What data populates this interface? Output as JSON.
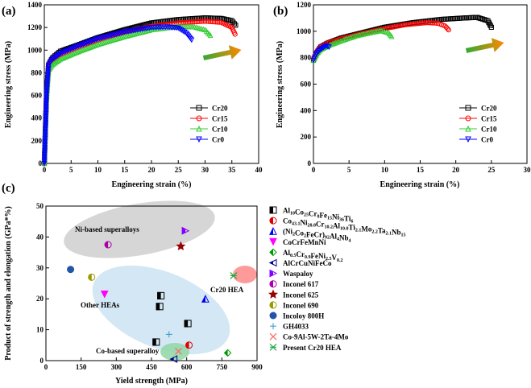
{
  "panels": {
    "a": {
      "label": "(a)",
      "xlabel": "Engineering strain (%)",
      "ylabel": "Engineering stress (MPa)"
    },
    "b": {
      "label": "(b)",
      "xlabel": "Engineering strain (%)",
      "ylabel": "Engineering stress (MPa)"
    },
    "c": {
      "label": "(c)",
      "xlabel": "Yield strength (MPa)",
      "ylabel": "Product of strength and elongation (GPa*%)"
    }
  },
  "chart_data": [
    {
      "id": "a",
      "type": "line",
      "xlabel": "Engineering strain (%)",
      "ylabel": "Engineering stress (MPa)",
      "xlim": [
        0,
        40
      ],
      "ylim": [
        0,
        1400
      ],
      "xticks": [
        0,
        5,
        10,
        15,
        20,
        25,
        30,
        35,
        40
      ],
      "yticks": [
        0,
        200,
        400,
        600,
        800,
        1000,
        1200,
        1400
      ],
      "legend_position": "bottom-right",
      "series": [
        {
          "name": "Cr20",
          "color": "#000000",
          "marker": "square",
          "x": [
            0,
            0.4,
            0.8,
            1.5,
            3,
            6,
            10,
            15,
            20,
            25,
            30,
            33,
            35,
            35.7
          ],
          "y": [
            0,
            600,
            870,
            930,
            990,
            1040,
            1110,
            1180,
            1240,
            1270,
            1285,
            1280,
            1260,
            1220
          ]
        },
        {
          "name": "Cr15",
          "color": "#ff0000",
          "marker": "circle",
          "x": [
            0,
            0.4,
            0.8,
            1.5,
            3,
            6,
            10,
            15,
            20,
            25,
            30,
            33,
            35,
            35.6
          ],
          "y": [
            0,
            580,
            850,
            910,
            960,
            1020,
            1090,
            1160,
            1210,
            1240,
            1255,
            1245,
            1200,
            1140
          ]
        },
        {
          "name": "Cr10",
          "color": "#33cc33",
          "marker": "triangle-up",
          "x": [
            0,
            0.4,
            0.8,
            1.5,
            3,
            6,
            10,
            15,
            20,
            25,
            28,
            30,
            31
          ],
          "y": [
            0,
            560,
            820,
            870,
            920,
            980,
            1050,
            1120,
            1180,
            1210,
            1205,
            1180,
            1130
          ]
        },
        {
          "name": "Cr0",
          "color": "#0000ff",
          "marker": "triangle-down",
          "x": [
            0,
            0.4,
            0.8,
            1.5,
            3,
            6,
            10,
            15,
            20,
            23,
            25,
            26.5,
            27.5
          ],
          "y": [
            0,
            600,
            870,
            920,
            970,
            1030,
            1100,
            1160,
            1200,
            1205,
            1195,
            1150,
            1090
          ]
        }
      ]
    },
    {
      "id": "b",
      "type": "line",
      "xlabel": "Engineering strain (%)",
      "ylabel": "Engineering stress (MPa)",
      "xlim": [
        0,
        30
      ],
      "ylim": [
        0,
        1200
      ],
      "xticks": [
        0,
        5,
        10,
        15,
        20,
        25,
        30
      ],
      "yticks": [
        0,
        200,
        400,
        600,
        800,
        1000,
        1200
      ],
      "legend_position": "bottom-right",
      "series": [
        {
          "name": "Cr20",
          "color": "#000000",
          "marker": "square",
          "x": [
            0,
            0.5,
            1,
            2,
            4,
            7,
            10,
            14,
            18,
            21,
            23,
            24.5,
            25
          ],
          "y": [
            780,
            840,
            880,
            910,
            950,
            990,
            1030,
            1065,
            1090,
            1100,
            1105,
            1080,
            1030
          ]
        },
        {
          "name": "Cr15",
          "color": "#ff0000",
          "marker": "circle",
          "x": [
            0,
            0.5,
            1,
            2,
            4,
            7,
            10,
            13,
            16,
            17.5,
            18.5,
            19
          ],
          "y": [
            790,
            850,
            880,
            910,
            945,
            985,
            1020,
            1050,
            1065,
            1060,
            1040,
            1010
          ]
        },
        {
          "name": "Cr10",
          "color": "#33cc33",
          "marker": "triangle-up",
          "x": [
            0,
            0.5,
            1,
            2,
            4,
            6,
            8,
            9.5,
            10.5,
            11
          ],
          "y": [
            780,
            830,
            860,
            890,
            930,
            965,
            990,
            1005,
            990,
            960
          ]
        },
        {
          "name": "Cr0",
          "color": "#0000ff",
          "marker": "triangle-down",
          "x": [
            0,
            0.3,
            0.7,
            1.2,
            1.8,
            2.2
          ],
          "y": [
            780,
            820,
            850,
            870,
            890,
            880
          ]
        }
      ]
    },
    {
      "id": "c",
      "type": "scatter",
      "xlabel": "Yield strength (MPa)",
      "ylabel": "Product of strength and elongation (GPa*%)",
      "xlim": [
        0,
        900
      ],
      "ylim": [
        0,
        50
      ],
      "xticks": [
        0,
        150,
        300,
        450,
        600,
        750,
        900
      ],
      "yticks": [
        0,
        10,
        20,
        30,
        40,
        50
      ],
      "legend_position": "right",
      "annotations": [
        "Ni-based superalloys",
        "Other HEAs",
        "Co-based superalloy",
        "Cr20 HEA"
      ],
      "series": [
        {
          "name": "Al10Co25Cr8Fe15Ni36Ti6",
          "sub": [
            {
              "t": "Al",
              "s": false
            },
            {
              "t": "10",
              "s": true
            },
            {
              "t": "Co",
              "s": false
            },
            {
              "t": "25",
              "s": true
            },
            {
              "t": "Cr",
              "s": false
            },
            {
              "t": "8",
              "s": true
            },
            {
              "t": "Fe",
              "s": false
            },
            {
              "t": "15",
              "s": true
            },
            {
              "t": "Ni",
              "s": false
            },
            {
              "t": "36",
              "s": true
            },
            {
              "t": "Ti",
              "s": false
            },
            {
              "t": "6",
              "s": true
            }
          ],
          "color": "#000000",
          "marker": "half-square",
          "points": [
            [
              490,
              21
            ],
            [
              485,
              17.5
            ],
            [
              470,
              6
            ],
            [
              605,
              12
            ]
          ]
        },
        {
          "name": "Co43.1Ni28.8Cr10.2Al10.0Ti2.1Mo2.2Ta2.1Nb15",
          "sub": [
            {
              "t": "Co",
              "s": false
            },
            {
              "t": "43.1",
              "s": true
            },
            {
              "t": "Ni",
              "s": false
            },
            {
              "t": "28.8",
              "s": true
            },
            {
              "t": "Cr",
              "s": false
            },
            {
              "t": "10.2",
              "s": true
            },
            {
              "t": "Al",
              "s": false
            },
            {
              "t": "10.0",
              "s": true
            },
            {
              "t": "Ti",
              "s": false
            },
            {
              "t": "2.1",
              "s": true
            },
            {
              "t": "Mo",
              "s": false
            },
            {
              "t": "2.2",
              "s": true
            },
            {
              "t": "Ta",
              "s": false
            },
            {
              "t": "2.1",
              "s": true
            },
            {
              "t": "Nb",
              "s": false
            },
            {
              "t": "15",
              "s": true
            }
          ],
          "color": "#e00000",
          "marker": "half-circle",
          "points": [
            [
              610,
              5
            ]
          ]
        },
        {
          "name": "(Ni2Co2FeCr)92Al4Nb4",
          "sub": [
            {
              "t": "(Ni",
              "s": false
            },
            {
              "t": "2",
              "s": true
            },
            {
              "t": "Co",
              "s": false
            },
            {
              "t": "2",
              "s": true
            },
            {
              "t": "FeCr)",
              "s": false
            },
            {
              "t": "92",
              "s": true
            },
            {
              "t": "Al",
              "s": false
            },
            {
              "t": "4",
              "s": true
            },
            {
              "t": "Nb",
              "s": false
            },
            {
              "t": "4",
              "s": true
            }
          ],
          "color": "#0000ee",
          "marker": "half-triangle-up",
          "points": [
            [
              680,
              20
            ]
          ]
        },
        {
          "name": "CoCrFeMnNi",
          "sub": [
            {
              "t": "CoCrFeMnNi",
              "s": false
            }
          ],
          "color": "#ff00ff",
          "marker": "triangle-down",
          "points": [
            [
              250,
              21.5
            ]
          ]
        },
        {
          "name": "Al0.5Cr0.9FeNi2.5V0.2",
          "sub": [
            {
              "t": "Al",
              "s": false
            },
            {
              "t": "0.5",
              "s": true
            },
            {
              "t": "Cr",
              "s": false
            },
            {
              "t": "0.9",
              "s": true
            },
            {
              "t": "FeNi",
              "s": false
            },
            {
              "t": "2.5",
              "s": true
            },
            {
              "t": "V",
              "s": false
            },
            {
              "t": "0.2",
              "s": true
            }
          ],
          "color": "#009900",
          "marker": "half-diamond",
          "points": [
            [
              775,
              2.5
            ]
          ]
        },
        {
          "name": "AlCrCuNiFeCo",
          "sub": [
            {
              "t": "AlCrCuNiFeCo",
              "s": false
            }
          ],
          "color": "#000088",
          "marker": "half-triangle-left",
          "points": [
            [
              545,
              0.5
            ]
          ]
        },
        {
          "name": "Waspaloy",
          "sub": [
            {
              "t": "Waspaloy",
              "s": false
            }
          ],
          "color": "#8800ff",
          "marker": "half-triangle-right",
          "points": [
            [
              595,
              42
            ]
          ]
        },
        {
          "name": "Inconel 617",
          "sub": [
            {
              "t": "Inconel 617",
              "s": false
            }
          ],
          "color": "#aa00aa",
          "marker": "half-circle",
          "points": [
            [
              265,
              37.5
            ]
          ]
        },
        {
          "name": "Inconel 625",
          "sub": [
            {
              "t": "Inconel 625",
              "s": false
            }
          ],
          "color": "#990000",
          "marker": "star",
          "points": [
            [
              575,
              37
            ]
          ]
        },
        {
          "name": "Inconel 690",
          "sub": [
            {
              "t": "Inconel 690",
              "s": false
            }
          ],
          "color": "#999900",
          "marker": "half-circle",
          "points": [
            [
              195,
              27
            ]
          ]
        },
        {
          "name": "Incoloy 800H",
          "sub": [
            {
              "t": "Incoloy 800H",
              "s": false
            }
          ],
          "color": "#2255aa",
          "marker": "circle",
          "points": [
            [
              105,
              29.5
            ]
          ]
        },
        {
          "name": "GH4033",
          "sub": [
            {
              "t": "GH4033",
              "s": false
            }
          ],
          "color": "#3399cc",
          "marker": "plus",
          "points": [
            [
              525,
              8.5
            ]
          ]
        },
        {
          "name": "Co-9Al-5W-2Ta-4Mo",
          "sub": [
            {
              "t": "Co-9Al-5W-2Ta-4Mo",
              "s": false
            }
          ],
          "color": "#ff6666",
          "marker": "x",
          "points": [
            [
              565,
              3
            ]
          ]
        },
        {
          "name": "Present Cr20 HEA",
          "sub": [
            {
              "t": "Present Cr20 HEA",
              "s": false
            }
          ],
          "color": "#22aa44",
          "marker": "asterisk",
          "points": [
            [
              800,
              27.5
            ]
          ]
        }
      ]
    }
  ]
}
